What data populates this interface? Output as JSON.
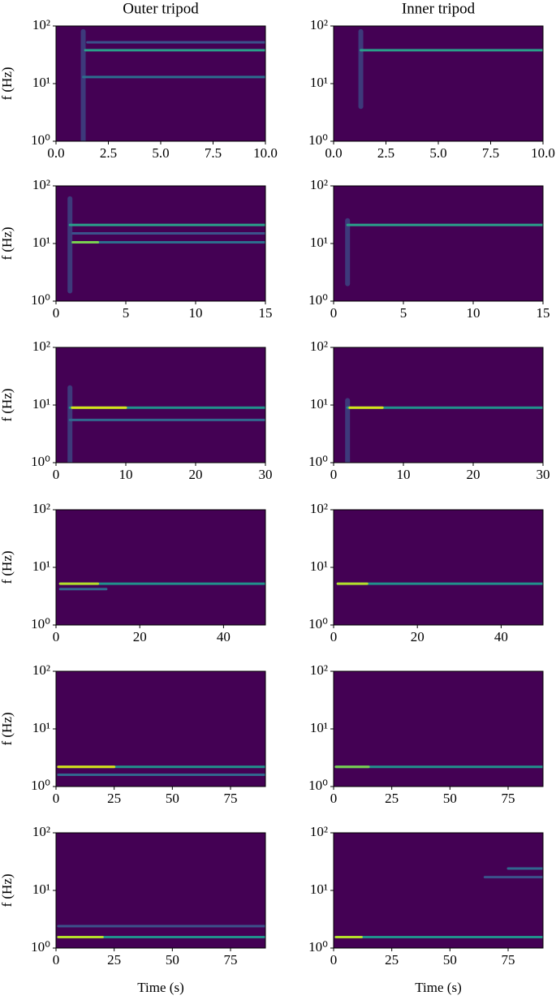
{
  "chart_data": [
    {
      "type": "spectrogram",
      "title": "Outer tripod",
      "ylabel": "f (Hz)",
      "yscale": "log",
      "background": "#440154",
      "xlim": [
        0,
        10
      ],
      "xticks": [
        {
          "value": 0,
          "label": "0.0"
        },
        2.5,
        {
          "value": 5,
          "label": "5.0"
        },
        7.5,
        {
          "value": 10,
          "label": "10.0"
        }
      ],
      "ylim": [
        1,
        100
      ],
      "yticks": [
        {
          "value": 1,
          "label": "10⁰"
        },
        {
          "value": 10,
          "label": "10¹"
        },
        {
          "value": 100,
          "label": "10²"
        }
      ],
      "series": [
        {
          "color": "#3b528b",
          "x": [
            1.3,
            1.3
          ],
          "values": [
            1,
            80
          ]
        },
        {
          "color": "#2c6e8e",
          "x": [
            1.3,
            10
          ],
          "values": [
            13,
            13
          ]
        },
        {
          "color": "#3b528b",
          "x": [
            1.5,
            10
          ],
          "values": [
            52,
            52
          ]
        },
        {
          "color": "#2aa08a",
          "x": [
            1.4,
            10
          ],
          "values": [
            38,
            38
          ]
        }
      ]
    },
    {
      "type": "spectrogram",
      "title": "Inner tripod",
      "yscale": "log",
      "background": "#440154",
      "xlim": [
        0,
        10
      ],
      "xticks": [
        {
          "value": 0,
          "label": "0.0"
        },
        2.5,
        {
          "value": 5,
          "label": "5.0"
        },
        7.5,
        {
          "value": 10,
          "label": "10.0"
        }
      ],
      "ylim": [
        1,
        100
      ],
      "yticks": [
        {
          "value": 1,
          "label": "10⁰"
        },
        {
          "value": 10,
          "label": "10¹"
        },
        {
          "value": 100,
          "label": "10²"
        }
      ],
      "series": [
        {
          "color": "#3b528b",
          "x": [
            1.3,
            1.3
          ],
          "values": [
            4,
            80
          ]
        },
        {
          "color": "#2aa08a",
          "x": [
            1.3,
            10
          ],
          "values": [
            38,
            38
          ]
        }
      ]
    },
    {
      "type": "spectrogram",
      "ylabel": "f (Hz)",
      "yscale": "log",
      "background": "#440154",
      "xlim": [
        0,
        15
      ],
      "xticks": [
        0,
        5,
        10,
        15
      ],
      "ylim": [
        1,
        100
      ],
      "yticks": [
        {
          "value": 1,
          "label": "10⁰"
        },
        {
          "value": 10,
          "label": "10¹"
        },
        {
          "value": 100,
          "label": "10²"
        }
      ],
      "series": [
        {
          "color": "#3b528b",
          "x": [
            1,
            1
          ],
          "values": [
            1.5,
            60
          ]
        },
        {
          "color": "#3b528b",
          "x": [
            1.2,
            15
          ],
          "values": [
            15,
            15
          ]
        },
        {
          "color": "#2aa08a",
          "x": [
            1,
            15
          ],
          "values": [
            21,
            21
          ]
        },
        {
          "color": "#2c6e8e",
          "x": [
            1.2,
            15
          ],
          "values": [
            10.5,
            10.5
          ]
        },
        {
          "color": "#7ad151",
          "x": [
            1.2,
            3
          ],
          "values": [
            10.5,
            10.5
          ]
        }
      ]
    },
    {
      "type": "spectrogram",
      "yscale": "log",
      "background": "#440154",
      "xlim": [
        0,
        15
      ],
      "xticks": [
        0,
        5,
        10,
        15
      ],
      "ylim": [
        1,
        100
      ],
      "yticks": [
        {
          "value": 1,
          "label": "10⁰"
        },
        {
          "value": 10,
          "label": "10¹"
        },
        {
          "value": 100,
          "label": "10²"
        }
      ],
      "series": [
        {
          "color": "#3b528b",
          "x": [
            1,
            1
          ],
          "values": [
            2,
            25
          ]
        },
        {
          "color": "#2aa08a",
          "x": [
            1,
            15
          ],
          "values": [
            21,
            21
          ]
        }
      ]
    },
    {
      "type": "spectrogram",
      "ylabel": "f (Hz)",
      "yscale": "log",
      "background": "#440154",
      "xlim": [
        0,
        30
      ],
      "xticks": [
        0,
        10,
        20,
        30
      ],
      "ylim": [
        1,
        100
      ],
      "yticks": [
        {
          "value": 1,
          "label": "10⁰"
        },
        {
          "value": 10,
          "label": "10¹"
        },
        {
          "value": 100,
          "label": "10²"
        }
      ],
      "series": [
        {
          "color": "#3b528b",
          "x": [
            2,
            2
          ],
          "values": [
            1,
            20
          ]
        },
        {
          "color": "#31688e",
          "x": [
            2,
            30
          ],
          "values": [
            5.5,
            5.5
          ]
        },
        {
          "color": "#21918c",
          "x": [
            2,
            30
          ],
          "values": [
            9,
            9
          ]
        },
        {
          "color": "#d8e219",
          "x": [
            2.3,
            10
          ],
          "values": [
            9,
            9
          ]
        }
      ]
    },
    {
      "type": "spectrogram",
      "yscale": "log",
      "background": "#440154",
      "xlim": [
        0,
        30
      ],
      "xticks": [
        0,
        10,
        20,
        30
      ],
      "ylim": [
        1,
        100
      ],
      "yticks": [
        {
          "value": 1,
          "label": "10⁰"
        },
        {
          "value": 10,
          "label": "10¹"
        },
        {
          "value": 100,
          "label": "10²"
        }
      ],
      "series": [
        {
          "color": "#3b528b",
          "x": [
            2,
            2
          ],
          "values": [
            1,
            12
          ]
        },
        {
          "color": "#21918c",
          "x": [
            2,
            30
          ],
          "values": [
            9,
            9
          ]
        },
        {
          "color": "#d8e219",
          "x": [
            2.3,
            7
          ],
          "values": [
            9,
            9
          ]
        }
      ]
    },
    {
      "type": "spectrogram",
      "ylabel": "f (Hz)",
      "yscale": "log",
      "background": "#440154",
      "xlim": [
        0,
        50
      ],
      "xticks": [
        0,
        20,
        40
      ],
      "ylim": [
        1,
        100
      ],
      "yticks": [
        {
          "value": 1,
          "label": "10⁰"
        },
        {
          "value": 10,
          "label": "10¹"
        },
        {
          "value": 100,
          "label": "10²"
        }
      ],
      "series": [
        {
          "color": "#31688e",
          "x": [
            1,
            12
          ],
          "values": [
            4.2,
            4.2
          ]
        },
        {
          "color": "#21918c",
          "x": [
            1,
            50
          ],
          "values": [
            5.2,
            5.2
          ]
        },
        {
          "color": "#b5de2b",
          "x": [
            1,
            10
          ],
          "values": [
            5.2,
            5.2
          ]
        }
      ]
    },
    {
      "type": "spectrogram",
      "yscale": "log",
      "background": "#440154",
      "xlim": [
        0,
        50
      ],
      "xticks": [
        0,
        20,
        40
      ],
      "ylim": [
        1,
        100
      ],
      "yticks": [
        {
          "value": 1,
          "label": "10⁰"
        },
        {
          "value": 10,
          "label": "10¹"
        },
        {
          "value": 100,
          "label": "10²"
        }
      ],
      "series": [
        {
          "color": "#21918c",
          "x": [
            1,
            50
          ],
          "values": [
            5.2,
            5.2
          ]
        },
        {
          "color": "#b5de2b",
          "x": [
            1,
            8
          ],
          "values": [
            5.2,
            5.2
          ]
        }
      ]
    },
    {
      "type": "spectrogram",
      "ylabel": "f (Hz)",
      "yscale": "log",
      "background": "#440154",
      "xlim": [
        0,
        90
      ],
      "xticks": [
        0,
        25,
        50,
        75
      ],
      "ylim": [
        1,
        100
      ],
      "yticks": [
        {
          "value": 1,
          "label": "10⁰"
        },
        {
          "value": 10,
          "label": "10¹"
        },
        {
          "value": 100,
          "label": "10²"
        }
      ],
      "series": [
        {
          "color": "#31688e",
          "x": [
            1,
            90
          ],
          "values": [
            1.6,
            1.6
          ]
        },
        {
          "color": "#21918c",
          "x": [
            1,
            90
          ],
          "values": [
            2.2,
            2.2
          ]
        },
        {
          "color": "#d8e219",
          "x": [
            1,
            25
          ],
          "values": [
            2.2,
            2.2
          ]
        }
      ]
    },
    {
      "type": "spectrogram",
      "yscale": "log",
      "background": "#440154",
      "xlim": [
        0,
        90
      ],
      "xticks": [
        0,
        25,
        50,
        75
      ],
      "ylim": [
        1,
        100
      ],
      "yticks": [
        {
          "value": 1,
          "label": "10⁰"
        },
        {
          "value": 10,
          "label": "10¹"
        },
        {
          "value": 100,
          "label": "10²"
        }
      ],
      "series": [
        {
          "color": "#21918c",
          "x": [
            1,
            90
          ],
          "values": [
            2.2,
            2.2
          ]
        },
        {
          "color": "#7ad151",
          "x": [
            1,
            15
          ],
          "values": [
            2.2,
            2.2
          ]
        }
      ]
    },
    {
      "type": "spectrogram",
      "ylabel": "f (Hz)",
      "xlabel": "Time (s)",
      "yscale": "log",
      "background": "#440154",
      "xlim": [
        0,
        90
      ],
      "xticks": [
        0,
        25,
        50,
        75
      ],
      "ylim": [
        1,
        100
      ],
      "yticks": [
        {
          "value": 1,
          "label": "10⁰"
        },
        {
          "value": 10,
          "label": "10¹"
        },
        {
          "value": 100,
          "label": "10²"
        }
      ],
      "series": [
        {
          "color": "#3b528b",
          "x": [
            1,
            90
          ],
          "values": [
            2.4,
            2.4
          ]
        },
        {
          "color": "#21918c",
          "x": [
            1,
            90
          ],
          "values": [
            1.55,
            1.55
          ]
        },
        {
          "color": "#b5de2b",
          "x": [
            1,
            20
          ],
          "values": [
            1.55,
            1.55
          ]
        }
      ]
    },
    {
      "type": "spectrogram",
      "xlabel": "Time (s)",
      "yscale": "log",
      "background": "#440154",
      "xlim": [
        0,
        90
      ],
      "xticks": [
        0,
        25,
        50,
        75
      ],
      "ylim": [
        1,
        100
      ],
      "yticks": [
        {
          "value": 1,
          "label": "10⁰"
        },
        {
          "value": 10,
          "label": "10¹"
        },
        {
          "value": 100,
          "label": "10²"
        }
      ],
      "series": [
        {
          "color": "#3b528b",
          "x": [
            65,
            90
          ],
          "values": [
            17,
            17
          ]
        },
        {
          "color": "#31688e",
          "x": [
            75,
            90
          ],
          "values": [
            24,
            24
          ]
        },
        {
          "color": "#21918c",
          "x": [
            1,
            90
          ],
          "values": [
            1.55,
            1.55
          ]
        },
        {
          "color": "#b5de2b",
          "x": [
            1,
            12
          ],
          "values": [
            1.55,
            1.55
          ]
        }
      ]
    }
  ]
}
